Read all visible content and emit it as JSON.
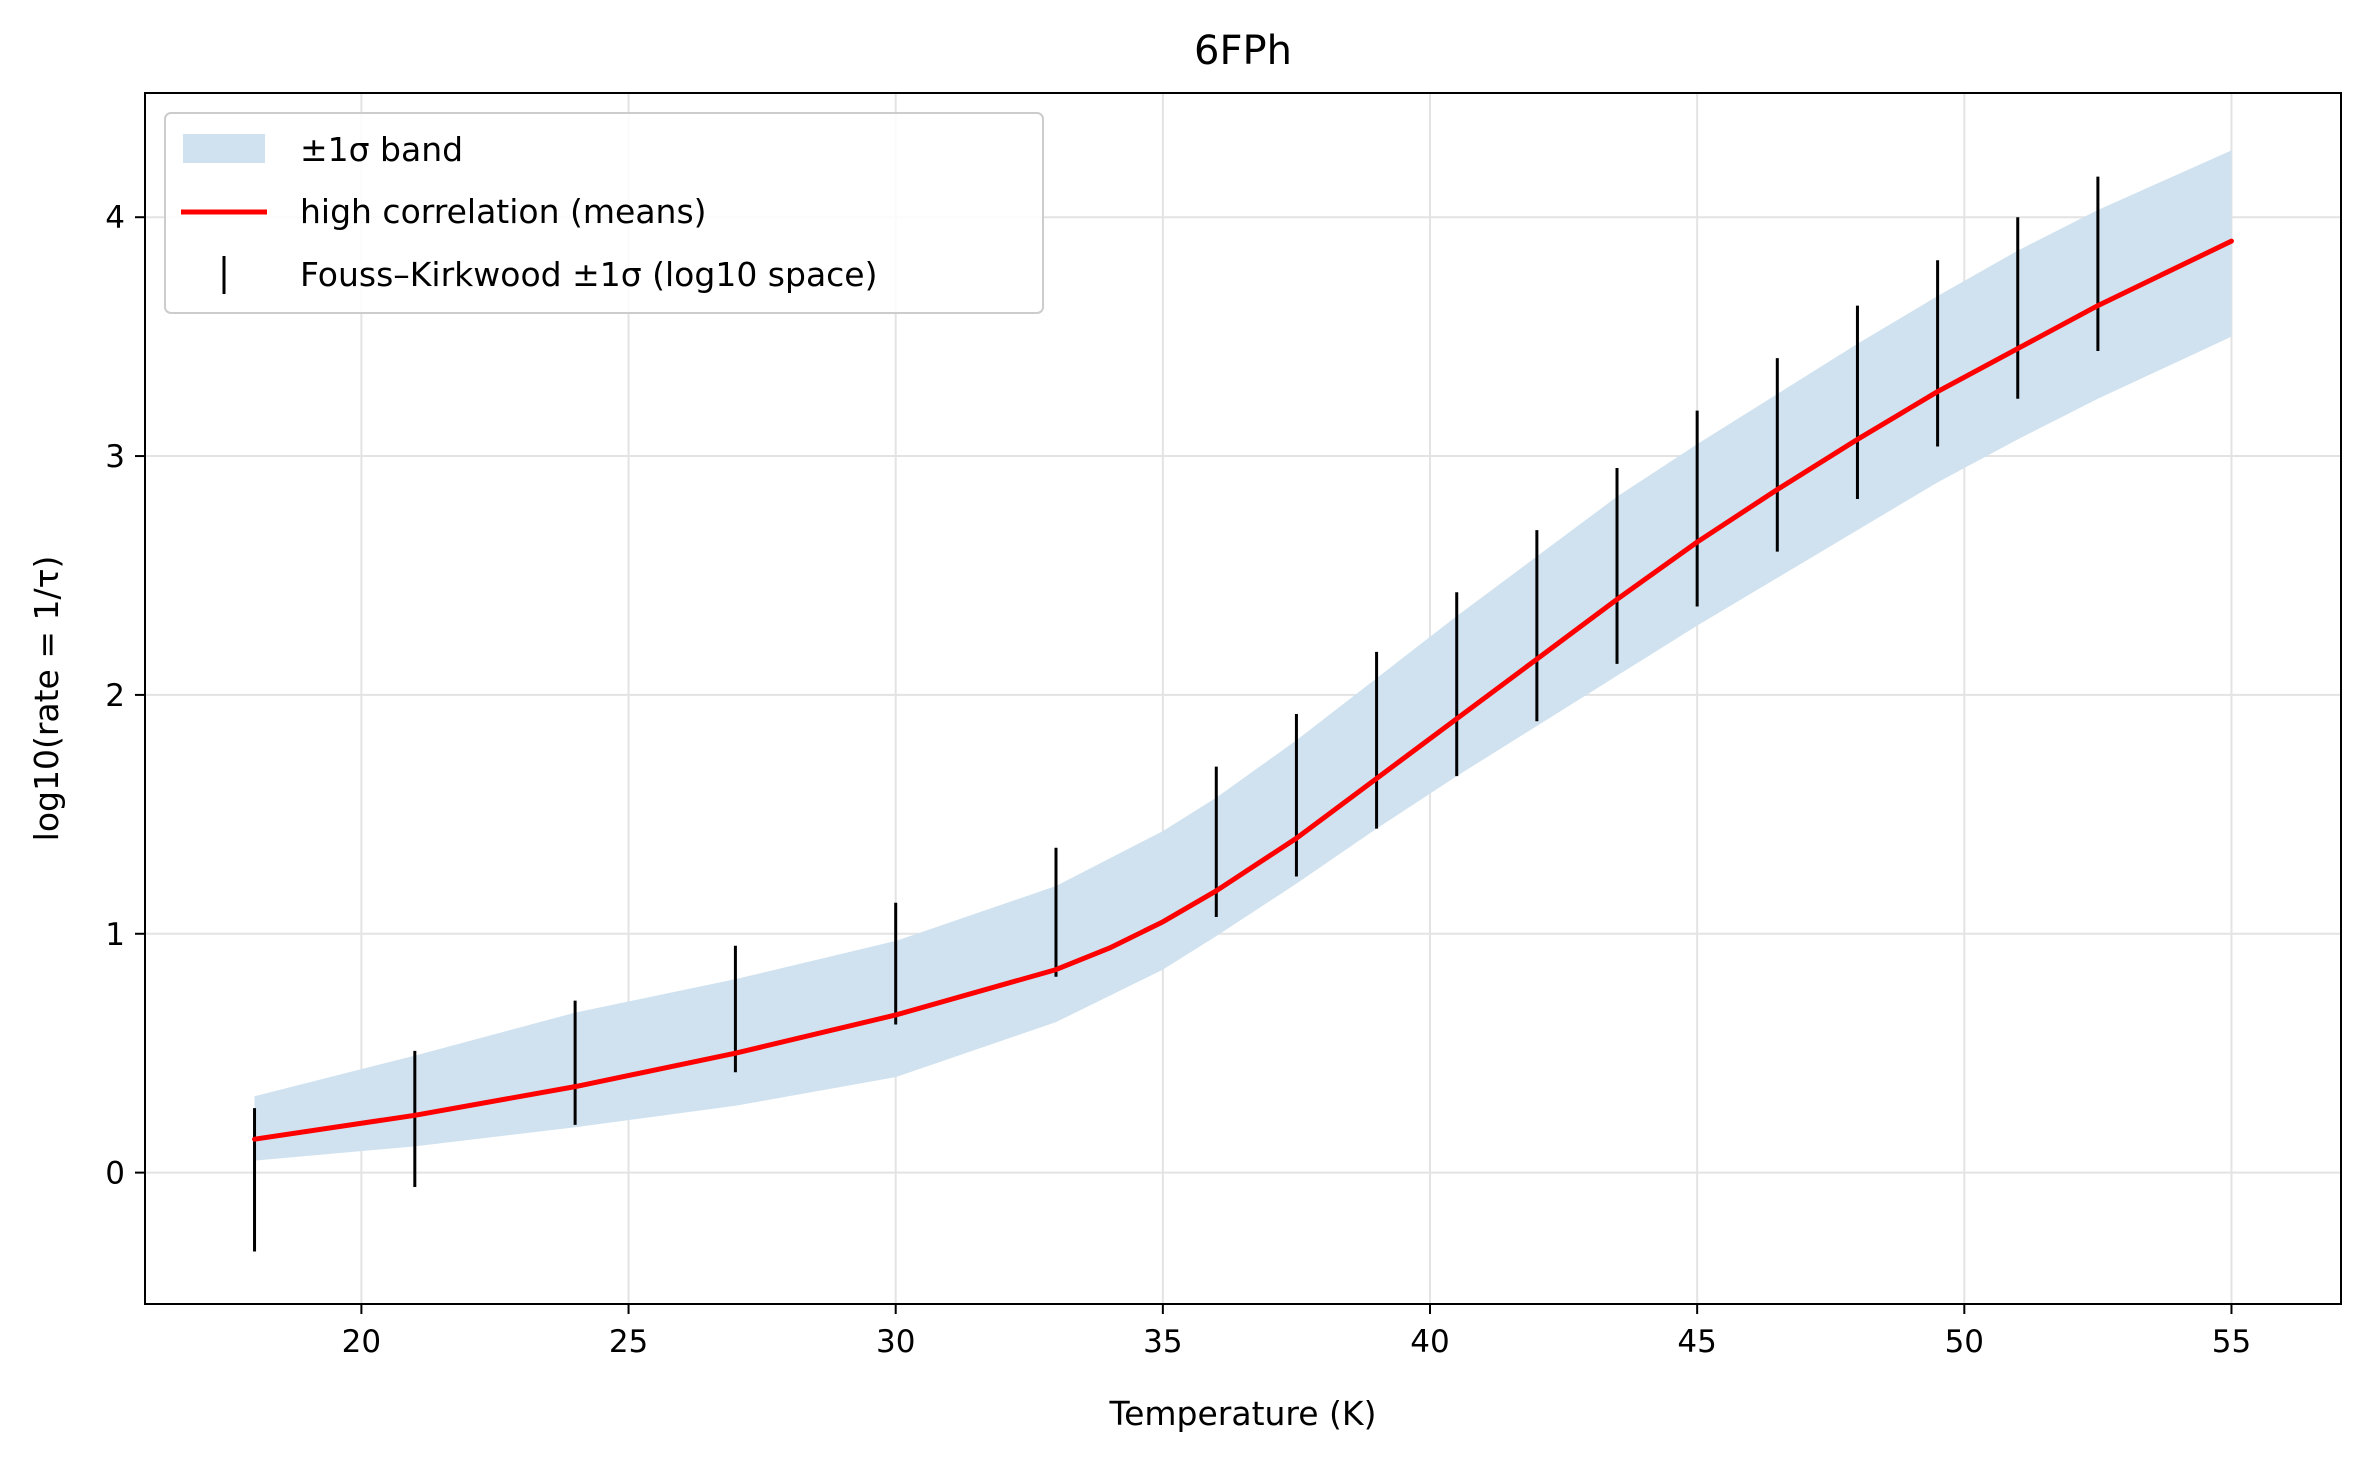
{
  "chart_data": {
    "type": "line",
    "title": "6FPh",
    "xlabel": "Temperature (K)",
    "ylabel": "log10(rate = 1/τ)",
    "xlim": [
      15.95,
      57.05
    ],
    "ylim": [
      -0.55,
      4.52
    ],
    "xticks": [
      20,
      25,
      30,
      35,
      40,
      45,
      50,
      55
    ],
    "yticks": [
      0,
      1,
      2,
      3,
      4
    ],
    "grid": true,
    "legend_position": "top-left",
    "colors": {
      "band": "#d0e2ef",
      "line": "#ff0000",
      "errorbar": "#000000"
    },
    "legend": [
      {
        "label": "±1σ band",
        "kind": "band"
      },
      {
        "label": "high correlation (means)",
        "kind": "line"
      },
      {
        "label": "Fouss–Kirkwood ±1σ (log10 space)",
        "kind": "errorbar"
      }
    ],
    "band": {
      "name": "±1σ band",
      "x": [
        18,
        21,
        24,
        27,
        30,
        33,
        35,
        36,
        37.5,
        39,
        40.5,
        42,
        43.5,
        45,
        46.5,
        48,
        49.5,
        51,
        52.5,
        55
      ],
      "lower": [
        0.05,
        0.11,
        0.19,
        0.28,
        0.4,
        0.63,
        0.85,
        0.99,
        1.21,
        1.44,
        1.66,
        1.87,
        2.08,
        2.29,
        2.49,
        2.69,
        2.89,
        3.07,
        3.24,
        3.5
      ],
      "upper": [
        0.32,
        0.49,
        0.67,
        0.81,
        0.97,
        1.2,
        1.43,
        1.57,
        1.81,
        2.07,
        2.33,
        2.58,
        2.83,
        3.05,
        3.26,
        3.47,
        3.67,
        3.86,
        4.03,
        4.28
      ]
    },
    "series": [
      {
        "name": "high correlation (means)",
        "x": [
          18,
          21,
          24,
          27,
          30,
          33,
          34,
          35,
          36,
          37.5,
          39,
          40.5,
          42,
          43.5,
          45,
          46.5,
          48,
          49.5,
          51,
          52.5,
          55
        ],
        "y": [
          0.14,
          0.24,
          0.36,
          0.5,
          0.66,
          0.85,
          0.94,
          1.05,
          1.18,
          1.4,
          1.65,
          1.9,
          2.15,
          2.4,
          2.64,
          2.86,
          3.07,
          3.27,
          3.45,
          3.63,
          3.9
        ]
      }
    ],
    "errorbars": {
      "name": "Fouss–Kirkwood ±1σ (log10 space)",
      "x": [
        18,
        21,
        24,
        27,
        30,
        33,
        36,
        37.5,
        39,
        40.5,
        42,
        43.5,
        45,
        46.5,
        48,
        49.5,
        51,
        52.5
      ],
      "low": [
        -0.33,
        -0.06,
        0.2,
        0.42,
        0.62,
        0.82,
        1.07,
        1.24,
        1.44,
        1.66,
        1.89,
        2.13,
        2.37,
        2.6,
        2.82,
        3.04,
        3.24,
        3.44
      ],
      "high": [
        0.27,
        0.51,
        0.72,
        0.95,
        1.13,
        1.36,
        1.7,
        1.92,
        2.18,
        2.43,
        2.69,
        2.95,
        3.19,
        3.41,
        3.63,
        3.82,
        4.0,
        4.17
      ]
    }
  }
}
